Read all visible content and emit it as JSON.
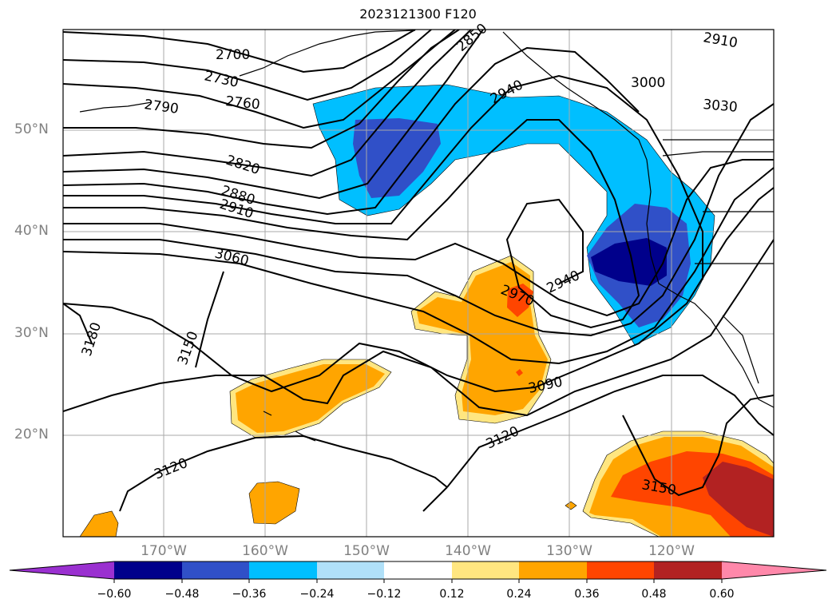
{
  "title": "2023121300 F120",
  "map": {
    "lat_labels": [
      "50°N",
      "40°N",
      "30°N",
      "20°N"
    ],
    "lon_labels": [
      "170°W",
      "160°W",
      "150°W",
      "140°W",
      "130°W",
      "120°W"
    ],
    "contour_labels": [
      "2700",
      "2730",
      "2760",
      "2790",
      "2820",
      "2850",
      "2880",
      "2910",
      "2910",
      "2940",
      "2940",
      "2970",
      "3000",
      "3030",
      "3060",
      "3090",
      "3120",
      "3120",
      "3150",
      "3150",
      "3180"
    ]
  },
  "colorbar": {
    "ticks": [
      "−0.60",
      "−0.48",
      "−0.36",
      "−0.24",
      "−0.12",
      "0.12",
      "0.24",
      "0.36",
      "0.48",
      "0.60"
    ],
    "colors": [
      "#9a30d0",
      "#00008b",
      "#3050c8",
      "#00bfff",
      "#b0e0f8",
      "#ffffff",
      "#ffe680",
      "#ffa500",
      "#ff4500",
      "#b22222",
      "#ff88aa"
    ]
  }
}
